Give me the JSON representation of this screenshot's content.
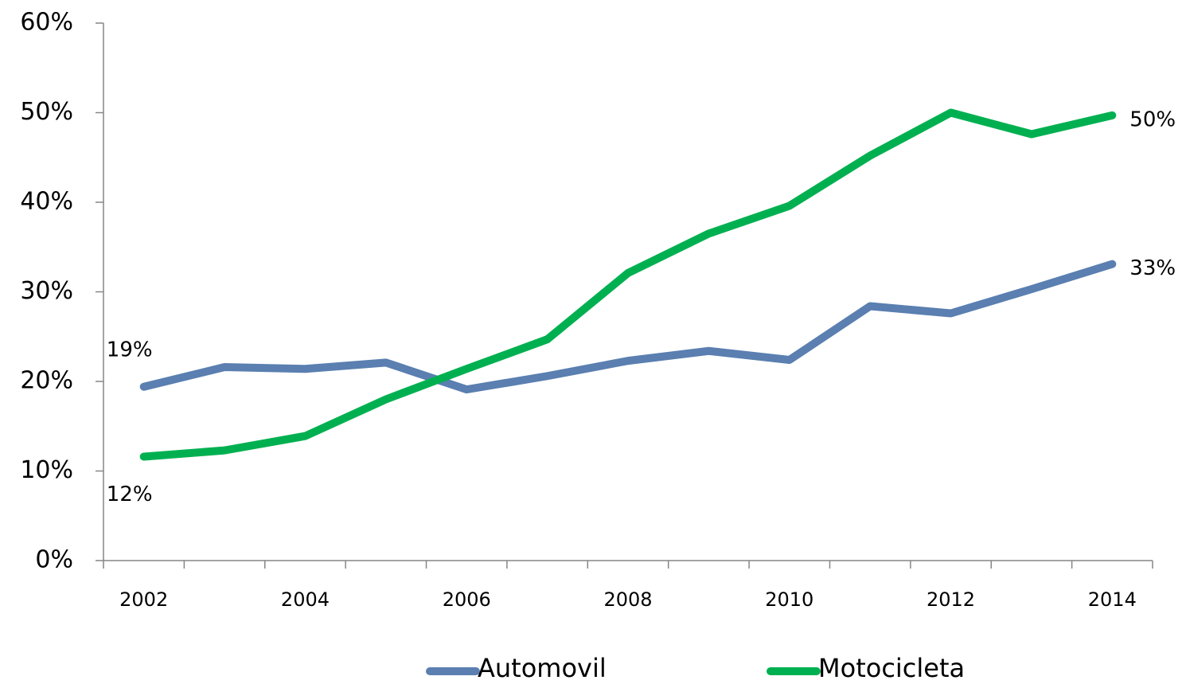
{
  "chart_data": {
    "type": "line",
    "categories": [
      "2002",
      null,
      "2004",
      null,
      "2006",
      null,
      "2008",
      null,
      "2010",
      null,
      "2012",
      null,
      "2014"
    ],
    "series": [
      {
        "name": "Automovil",
        "color": "#5a7fb0",
        "values": [
          19.4,
          21.6,
          21.4,
          22.1,
          19.1,
          20.6,
          22.3,
          23.4,
          22.4,
          28.4,
          27.6,
          30.3,
          33.1
        ],
        "value_labels": [
          "19%",
          null,
          null,
          null,
          null,
          null,
          null,
          null,
          null,
          null,
          null,
          null,
          "33%"
        ]
      },
      {
        "name": "Motocicleta",
        "color": "#00b050",
        "values": [
          11.6,
          12.3,
          13.9,
          18.0,
          21.4,
          24.7,
          32.1,
          36.5,
          39.6,
          45.2,
          50.0,
          47.6,
          49.7
        ],
        "value_labels": [
          "12%",
          null,
          null,
          null,
          null,
          null,
          null,
          null,
          null,
          null,
          null,
          null,
          "50%"
        ]
      }
    ],
    "ylim": [
      0,
      60
    ],
    "yticks": [
      {
        "value": 0,
        "label": "0%"
      },
      {
        "value": 10,
        "label": "10%"
      },
      {
        "value": 20,
        "label": "20%"
      },
      {
        "value": 30,
        "label": "30%"
      },
      {
        "value": 40,
        "label": "40%"
      },
      {
        "value": 50,
        "label": "50%"
      },
      {
        "value": 60,
        "label": "60%"
      }
    ],
    "legend": "bottom"
  }
}
